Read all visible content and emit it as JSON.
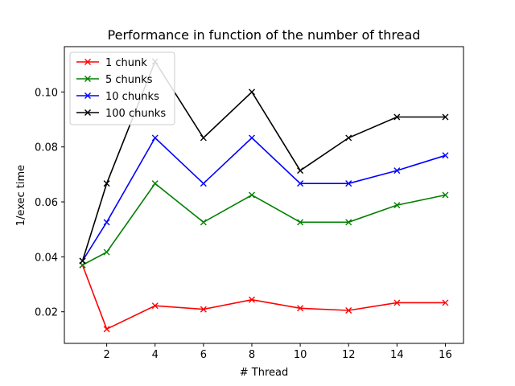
{
  "chart_data": {
    "type": "line",
    "title": "Performance in function of the number of thread",
    "xlabel": "# Thread",
    "ylabel": "1/exec time",
    "xlim": [
      0.25,
      16.75
    ],
    "ylim": [
      0.0085,
      0.1165
    ],
    "x_ticks": [
      2,
      4,
      6,
      8,
      10,
      12,
      14,
      16
    ],
    "y_ticks": [
      0.02,
      0.04,
      0.06,
      0.08,
      0.1
    ],
    "y_tick_labels": [
      "0.02",
      "0.04",
      "0.06",
      "0.08",
      "0.10"
    ],
    "x": [
      1,
      2,
      4,
      6,
      8,
      10,
      12,
      14,
      16
    ],
    "marker": "x",
    "grid": false,
    "legend_position": "top-left",
    "series": [
      {
        "name": "1 chunk",
        "color": "#ff0000",
        "values": [
          0.037,
          0.0137,
          0.0222,
          0.0209,
          0.0244,
          0.0213,
          0.0205,
          0.0233,
          0.0233
        ]
      },
      {
        "name": "5 chunks",
        "color": "#008000",
        "values": [
          0.037,
          0.0417,
          0.0667,
          0.0526,
          0.0625,
          0.0526,
          0.0526,
          0.0588,
          0.0625
        ]
      },
      {
        "name": "10 chunks",
        "color": "#0000ff",
        "values": [
          0.0385,
          0.0526,
          0.0833,
          0.0667,
          0.0833,
          0.0667,
          0.0667,
          0.0714,
          0.0769
        ]
      },
      {
        "name": "100 chunks",
        "color": "#000000",
        "values": [
          0.0385,
          0.0667,
          0.1111,
          0.0833,
          0.1,
          0.0714,
          0.0833,
          0.0909,
          0.0909
        ]
      }
    ]
  }
}
